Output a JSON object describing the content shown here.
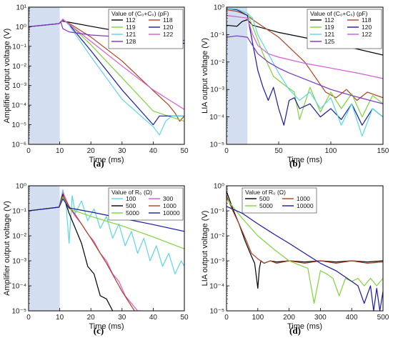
{
  "chart_data": [
    {
      "id": "a",
      "type": "line",
      "caption": "(a)",
      "xlabel": "Time (ms)",
      "ylabel": "Amplifier output voltage (V)",
      "yscale": "log",
      "xlim": [
        0,
        50
      ],
      "ylim": [
        1e-06,
        10
      ],
      "xticks": [
        0,
        10,
        20,
        30,
        40,
        50
      ],
      "yticks": [
        1e-06,
        1e-05,
        0.0001,
        0.001,
        0.01,
        0.1,
        1,
        10
      ],
      "ytick_labels": [
        "10⁻⁶",
        "10⁻⁵",
        "10⁻⁴",
        "10⁻³",
        "10⁻²",
        "10⁻¹",
        "10⁰",
        "10¹"
      ],
      "shade": [
        0,
        10
      ],
      "legend": {
        "title": "Value of (C₀+Cₛ) (pF)",
        "position": "top-right",
        "columns": 2
      },
      "series": [
        {
          "name": "112",
          "color": "#000000",
          "x": [
            0,
            5,
            9.8,
            10.5,
            11,
            13,
            20,
            30,
            40,
            50
          ],
          "y": [
            1.0,
            1.2,
            1.45,
            2.0,
            1.9,
            1.7,
            1.05,
            0.55,
            0.28,
            0.14
          ]
        },
        {
          "name": "118",
          "color": "#b0411e",
          "x": [
            0,
            9.8,
            11,
            13,
            20,
            30,
            40,
            45,
            47,
            48.5,
            50
          ],
          "y": [
            1.0,
            1.45,
            2.1,
            1.5,
            0.3,
            0.018,
            0.00055,
            0.0001,
            4e-05,
            1.5e-05,
            2.8e-05
          ]
        },
        {
          "name": "119",
          "color": "#7ed43a",
          "x": [
            0,
            9.8,
            11,
            13,
            20,
            30,
            40,
            50
          ],
          "y": [
            1.0,
            1.45,
            2.2,
            1.4,
            0.12,
            0.0025,
            5e-05,
            1.5e-05
          ]
        },
        {
          "name": "120",
          "color": "#1a1aa0",
          "x": [
            0,
            9.8,
            11,
            13,
            20,
            30,
            40,
            42,
            50
          ],
          "y": [
            1.0,
            1.45,
            2.3,
            1.3,
            0.06,
            0.0006,
            1e-05,
            2.8e-05,
            2.8e-05
          ]
        },
        {
          "name": "121",
          "color": "#5cd6e6",
          "x": [
            0,
            9.8,
            11,
            13,
            20,
            30,
            38,
            40,
            42,
            44,
            46,
            50
          ],
          "y": [
            1.0,
            1.45,
            2.5,
            1.2,
            0.03,
            0.0002,
            1.5e-05,
            8e-06,
            3e-06,
            1.5e-05,
            2.8e-05,
            2.8e-05
          ]
        },
        {
          "name": "122",
          "color": "#d659d6",
          "x": [
            0,
            9.8,
            11,
            13,
            20,
            30,
            40,
            50
          ],
          "y": [
            1.0,
            1.45,
            2.4,
            1.35,
            0.18,
            0.01,
            0.0006,
            6e-05
          ]
        },
        {
          "name": "128",
          "color": "#7a33c6",
          "x": [
            0,
            9.8,
            10.3,
            11,
            13,
            20,
            30,
            40,
            50
          ],
          "y": [
            1.0,
            1.45,
            1.8,
            0.8,
            0.55,
            0.38,
            0.3,
            0.25,
            0.2
          ]
        }
      ]
    },
    {
      "id": "b",
      "type": "line",
      "caption": "(b)",
      "xlabel": "Time (ms)",
      "ylabel": "LIA output voltage (V)",
      "yscale": "log",
      "xlim": [
        0,
        150
      ],
      "ylim": [
        1e-05,
        1
      ],
      "xticks": [
        0,
        50,
        100,
        150
      ],
      "yticks": [
        1e-05,
        0.0001,
        0.001,
        0.01,
        0.1,
        1
      ],
      "ytick_labels": [
        "10⁻⁵",
        "10⁻⁴",
        "10⁻³",
        "10⁻²",
        "10⁻¹",
        "10⁰"
      ],
      "shade": [
        0,
        20
      ],
      "legend": {
        "title": "Value of (C₀+Cₛ) (pF)",
        "position": "top-right",
        "columns": 2
      },
      "series": [
        {
          "name": "112",
          "color": "#000000",
          "x": [
            0,
            10,
            15,
            20,
            25,
            50,
            100,
            150
          ],
          "y": [
            0.22,
            0.2,
            0.3,
            0.35,
            0.22,
            0.12,
            0.05,
            0.018
          ]
        },
        {
          "name": "118",
          "color": "#b0411e",
          "x": [
            0,
            10,
            15,
            20,
            25,
            50,
            75,
            95,
            105,
            115,
            125,
            135,
            150
          ],
          "y": [
            0.8,
            0.7,
            0.6,
            0.5,
            0.35,
            0.08,
            0.01,
            0.0008,
            0.0005,
            0.001,
            0.0004,
            0.0008,
            0.0005
          ]
        },
        {
          "name": "119",
          "color": "#7ed43a",
          "x": [
            0,
            10,
            20,
            25,
            35,
            45,
            55,
            65,
            70,
            80,
            90,
            100,
            110,
            120,
            130,
            140,
            150
          ],
          "y": [
            0.9,
            0.8,
            0.6,
            0.2,
            0.02,
            0.003,
            0.0015,
            0.0008,
            8e-05,
            0.0012,
            0.00015,
            0.0008,
            0.0002,
            0.0007,
            0.0001,
            0.0006,
            0.0003
          ]
        },
        {
          "name": "120",
          "color": "#1a1aa0",
          "x": [
            0,
            10,
            20,
            25,
            30,
            35,
            40,
            45,
            50,
            55,
            60,
            65,
            70,
            80,
            90,
            100,
            110,
            120,
            130,
            140,
            150
          ],
          "y": [
            0.9,
            0.8,
            0.5,
            0.05,
            0.005,
            0.0012,
            0.0004,
            0.0012,
            0.0002,
            5e-05,
            0.0004,
            0.0005,
            0.0002,
            0.0003,
            0.0001,
            0.0002,
            8e-05,
            0.0003,
            5e-05,
            0.0002,
            0.0001
          ]
        },
        {
          "name": "121",
          "color": "#5cd6e6",
          "x": [
            0,
            10,
            20,
            25,
            30,
            40,
            50,
            60,
            70,
            80,
            90,
            100,
            110,
            120,
            130,
            140,
            150
          ],
          "y": [
            0.9,
            0.85,
            0.6,
            0.4,
            0.1,
            0.02,
            0.004,
            0.001,
            0.0004,
            0.0008,
            0.0002,
            0.0005,
            5e-05,
            0.0003,
            2e-05,
            0.0002,
            0.0001
          ]
        },
        {
          "name": "122",
          "color": "#d659d6",
          "x": [
            0,
            20,
            25,
            30,
            40,
            50,
            75,
            100,
            125,
            150
          ],
          "y": [
            0.5,
            0.4,
            0.1,
            0.04,
            0.02,
            0.015,
            0.009,
            0.006,
            0.004,
            0.0025
          ]
        },
        {
          "name": "125",
          "color": "#7a33c6",
          "x": [
            0,
            10,
            20,
            25,
            30,
            40,
            50,
            60,
            80,
            100,
            120,
            150
          ],
          "y": [
            0.08,
            0.09,
            0.08,
            0.04,
            0.02,
            0.01,
            0.006,
            0.004,
            0.002,
            0.001,
            0.0006,
            0.0003
          ]
        }
      ]
    },
    {
      "id": "c",
      "type": "line",
      "caption": "(c)",
      "xlabel": "Time (ms)",
      "ylabel": "Amplifier output voltage (V)",
      "yscale": "log",
      "xlim": [
        0,
        50
      ],
      "ylim": [
        1e-05,
        1
      ],
      "xticks": [
        0,
        10,
        20,
        30,
        40,
        50
      ],
      "yticks": [
        1e-05,
        0.0001,
        0.001,
        0.01,
        0.1,
        1
      ],
      "ytick_labels": [
        "10⁻⁵",
        "10⁻⁴",
        "10⁻³",
        "10⁻²",
        "10⁻¹",
        "10⁰"
      ],
      "shade": [
        0,
        10
      ],
      "legend": {
        "title": "Value of R₀ (Ω)",
        "position": "top-right",
        "columns": 2
      },
      "series": [
        {
          "name": "100",
          "color": "#5cd6e6",
          "x": [
            0,
            9.8,
            11,
            12,
            13,
            14,
            15,
            17,
            19,
            21,
            23,
            25,
            27,
            29,
            31,
            33,
            35,
            37,
            39,
            41,
            43,
            45,
            47,
            49,
            50
          ],
          "y": [
            0.1,
            0.14,
            0.7,
            0.2,
            0.005,
            0.4,
            0.08,
            0.25,
            0.04,
            0.12,
            0.02,
            0.06,
            0.008,
            0.03,
            0.004,
            0.015,
            0.002,
            0.008,
            0.001,
            0.004,
            0.0006,
            0.002,
            0.0003,
            0.001,
            0.0006
          ]
        },
        {
          "name": "300",
          "color": "#d659d6",
          "x": [
            0,
            9.8,
            11,
            13,
            15,
            17,
            19,
            21,
            23,
            25,
            27,
            29,
            31,
            33,
            35,
            36
          ],
          "y": [
            0.1,
            0.14,
            0.55,
            0.15,
            0.06,
            0.03,
            0.012,
            0.006,
            0.002,
            0.001,
            0.0003,
            0.00015,
            4e-05,
            2e-05,
            1e-05,
            1e-05
          ]
        },
        {
          "name": "500",
          "color": "#000000",
          "x": [
            0,
            9.8,
            11,
            13,
            15,
            17,
            19,
            21,
            23,
            25,
            27
          ],
          "y": [
            0.1,
            0.14,
            0.45,
            0.08,
            0.02,
            0.005,
            0.0006,
            0.0003,
            4e-05,
            3e-05,
            1e-05
          ]
        },
        {
          "name": "1000",
          "color": "#b0411e",
          "x": [
            0,
            9.8,
            11,
            13,
            15,
            20,
            25,
            30,
            34
          ],
          "y": [
            0.1,
            0.14,
            0.4,
            0.15,
            0.07,
            0.008,
            0.0008,
            6e-05,
            1e-05
          ]
        },
        {
          "name": "5000",
          "color": "#7ed43a",
          "x": [
            0,
            9.8,
            11,
            13,
            20,
            30,
            40,
            50
          ],
          "y": [
            0.1,
            0.14,
            0.35,
            0.12,
            0.06,
            0.025,
            0.009,
            0.003
          ]
        },
        {
          "name": "10000",
          "color": "#1a1aa0",
          "x": [
            0,
            9.8,
            11,
            13,
            20,
            30,
            40,
            50
          ],
          "y": [
            0.1,
            0.14,
            0.3,
            0.13,
            0.09,
            0.05,
            0.028,
            0.015
          ]
        }
      ]
    },
    {
      "id": "d",
      "type": "line",
      "caption": "(d)",
      "xlabel": "Time (ms)",
      "ylabel": "LIA output voltage (V)",
      "yscale": "log",
      "xlim": [
        0,
        500
      ],
      "ylim": [
        1e-05,
        1
      ],
      "xticks": [
        0,
        100,
        200,
        300,
        400,
        500
      ],
      "yticks": [
        1e-05,
        0.0001,
        0.001,
        0.01,
        0.1,
        1
      ],
      "ytick_labels": [
        "10⁻⁵",
        "10⁻⁴",
        "10⁻³",
        "10⁻²",
        "10⁻¹",
        "10⁰"
      ],
      "shade": null,
      "legend": {
        "title": "Value of R₀ (Ω)",
        "position": "top-left",
        "columns": 2
      },
      "series": [
        {
          "name": "500",
          "color": "#000000",
          "x": [
            0,
            20,
            40,
            60,
            80,
            90,
            100,
            105,
            110,
            120,
            140,
            160,
            200,
            250,
            300,
            350,
            400,
            450,
            500
          ],
          "y": [
            0.6,
            0.12,
            0.03,
            0.006,
            0.0015,
            0.0008,
            8e-05,
            0.0005,
            0.001,
            0.0008,
            0.001,
            0.0009,
            0.001,
            0.0009,
            0.001,
            0.0009,
            0.001,
            0.0009,
            0.001
          ]
        },
        {
          "name": "1000",
          "color": "#b0411e",
          "x": [
            0,
            20,
            40,
            60,
            80,
            100,
            120,
            140,
            160,
            200,
            250,
            300,
            350,
            400,
            450,
            500
          ],
          "y": [
            0.4,
            0.1,
            0.03,
            0.008,
            0.002,
            0.0012,
            0.0008,
            0.001,
            0.0008,
            0.001,
            0.0008,
            0.001,
            0.0008,
            0.001,
            0.0008,
            0.0009
          ]
        },
        {
          "name": "5000",
          "color": "#7ed43a",
          "x": [
            0,
            50,
            100,
            150,
            200,
            230,
            260,
            280,
            300,
            320,
            340,
            360,
            380,
            400,
            420,
            440,
            460,
            480,
            500
          ],
          "y": [
            0.3,
            0.05,
            0.01,
            0.003,
            0.001,
            0.0007,
            0.0005,
            2e-05,
            0.0004,
            0.0003,
            0.0002,
            4e-05,
            0.0002,
            0.00015,
            0.0002,
            0.0001,
            0.0002,
            0.0001,
            0.0002
          ]
        },
        {
          "name": "10000",
          "color": "#1a1aa0",
          "x": [
            0,
            50,
            100,
            150,
            200,
            250,
            300,
            350,
            400,
            420,
            440,
            460,
            470,
            480,
            490,
            500
          ],
          "y": [
            0.15,
            0.08,
            0.03,
            0.012,
            0.005,
            0.002,
            0.0008,
            0.0004,
            0.00015,
            0.0001,
            2e-05,
            0.0001,
            1e-05,
            8e-05,
            1e-05,
            6e-05
          ]
        }
      ]
    }
  ]
}
